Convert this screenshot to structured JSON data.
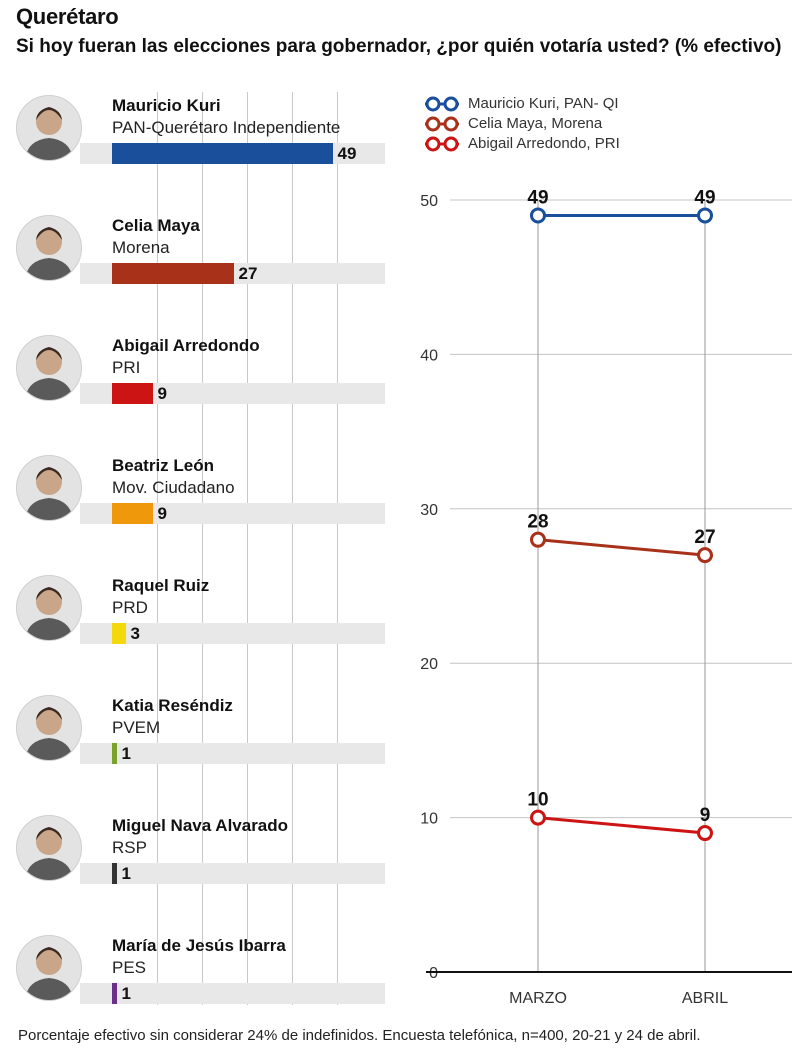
{
  "header": {
    "title": "Querétaro",
    "subtitle": "Si hoy fueran las elecciones para gobernador, ¿por quién votaría usted? (% efectivo)"
  },
  "candidates": [
    {
      "name": "Mauricio Kuri",
      "party": "PAN-Querétaro Independiente",
      "value": 49,
      "value_label": "49",
      "color": "#1a4f9c"
    },
    {
      "name": "Celia Maya",
      "party": "Morena",
      "value": 27,
      "value_label": "27",
      "color": "#a8311a"
    },
    {
      "name": "Abigail Arredondo",
      "party": "PRI",
      "value": 9,
      "value_label": "9",
      "color": "#cc1414"
    },
    {
      "name": "Beatriz León",
      "party": "Mov. Ciudadano",
      "value": 9,
      "value_label": "9",
      "color": "#f0980c"
    },
    {
      "name": "Raquel Ruiz",
      "party": "PRD",
      "value": 3,
      "value_label": "3",
      "color": "#f3d90b"
    },
    {
      "name": "Katia Reséndiz",
      "party": "PVEM",
      "value": 1,
      "value_label": "1",
      "color": "#7aa22a"
    },
    {
      "name": "Miguel Nava Alvarado",
      "party": "RSP",
      "value": 1,
      "value_label": "1",
      "color": "#333333"
    },
    {
      "name": "María de Jesús Ibarra",
      "party": "PES",
      "value": 1,
      "value_label": "1",
      "color": "#6b2f8a"
    }
  ],
  "chart_data": [
    {
      "type": "bar",
      "orientation": "horizontal",
      "categories": [
        "Mauricio Kuri",
        "Celia Maya",
        "Abigail Arredondo",
        "Beatriz León",
        "Raquel Ruiz",
        "Katia Reséndiz",
        "Miguel Nava Alvarado",
        "María de Jesús Ibarra"
      ],
      "values": [
        49,
        27,
        9,
        9,
        3,
        1,
        1,
        1
      ],
      "xlim": [
        0,
        50
      ],
      "grid": true
    },
    {
      "type": "line",
      "categories": [
        "MARZO",
        "ABRIL"
      ],
      "series": [
        {
          "name": "Mauricio Kuri, PAN- QI",
          "values": [
            49,
            49
          ],
          "labels": [
            "49",
            "49"
          ],
          "color": "#1a4f9c"
        },
        {
          "name": "Celia Maya, Morena",
          "values": [
            28,
            27
          ],
          "labels": [
            "28",
            "27"
          ],
          "color": "#a8311a"
        },
        {
          "name": "Abigail Arredondo, PRI",
          "values": [
            10,
            9
          ],
          "labels": [
            "10",
            "9"
          ],
          "color": "#cc1414"
        }
      ],
      "yticks": [
        "0",
        "10",
        "20",
        "30",
        "40",
        "50"
      ],
      "ylim": [
        0,
        50
      ],
      "legend_position": "top-left"
    }
  ],
  "footnote": "Porcentaje efectivo sin considerar 24% de indefinidos. Encuesta telefónica, n=400, 20-21 y 24 de abril."
}
